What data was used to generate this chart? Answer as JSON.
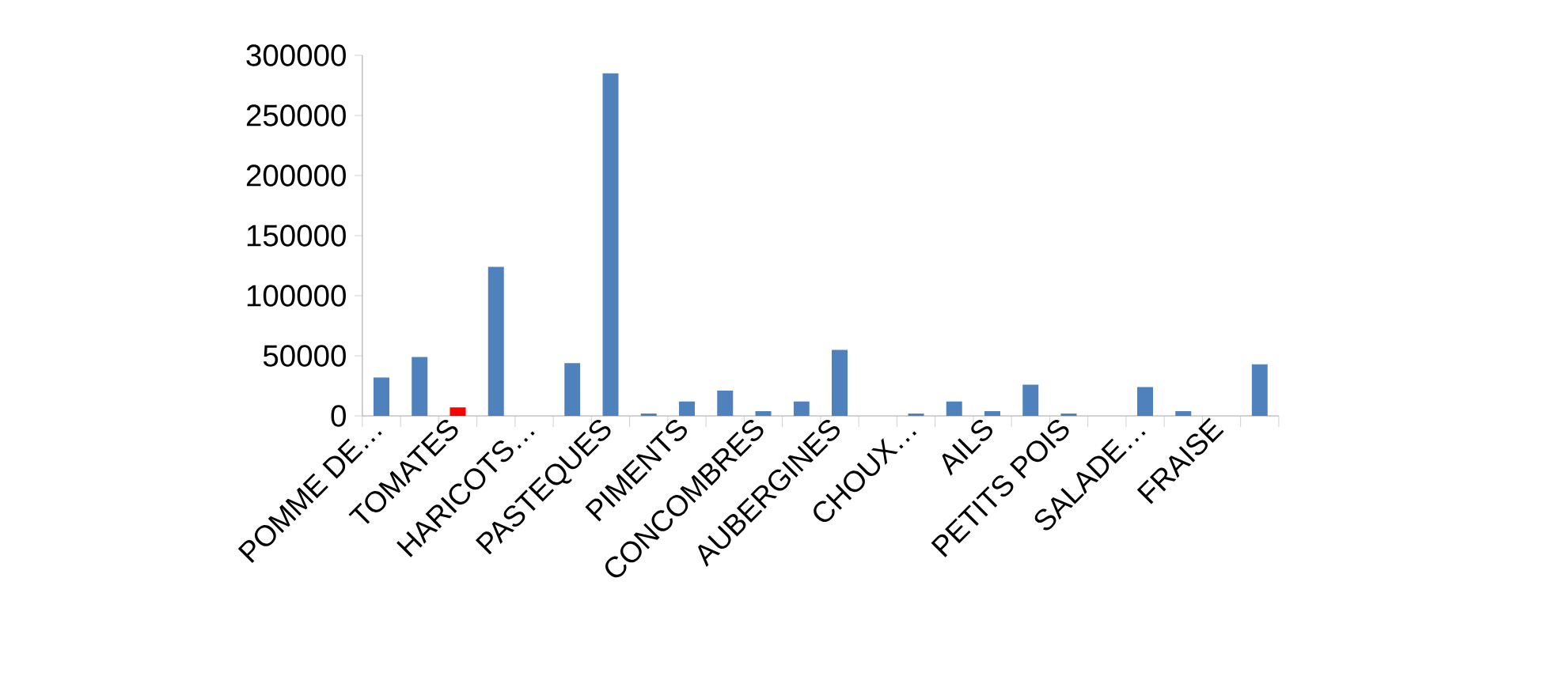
{
  "chart_data": {
    "type": "bar",
    "categories": [
      "POMME DE…",
      null,
      "TOMATES",
      null,
      "HARICOTS…",
      null,
      "PASTEQUES",
      null,
      "PIMENTS",
      null,
      "CONCOMBRES",
      null,
      "AUBERGINES",
      null,
      "CHOUX…",
      null,
      "AILS",
      null,
      "PETITS POIS",
      null,
      "SALADE…",
      null,
      "FRAISE",
      null
    ],
    "values": [
      32000,
      49000,
      7000,
      124000,
      0,
      44000,
      285000,
      2000,
      12000,
      21000,
      4000,
      12000,
      55000,
      0,
      2000,
      12000,
      4000,
      26000,
      2000,
      0,
      24000,
      4000,
      0,
      43000
    ],
    "colors": [
      "#4f81bd",
      "#4f81bd",
      "#ff0000",
      "#4f81bd",
      "#4f81bd",
      "#4f81bd",
      "#4f81bd",
      "#4f81bd",
      "#4f81bd",
      "#4f81bd",
      "#4f81bd",
      "#4f81bd",
      "#4f81bd",
      "#4f81bd",
      "#4f81bd",
      "#4f81bd",
      "#4f81bd",
      "#4f81bd",
      "#4f81bd",
      "#4f81bd",
      "#4f81bd",
      "#4f81bd",
      "#4f81bd",
      "#4f81bd"
    ],
    "ylim": [
      0,
      300000
    ],
    "yticks": [
      0,
      50000,
      100000,
      150000,
      200000,
      250000,
      300000
    ]
  }
}
